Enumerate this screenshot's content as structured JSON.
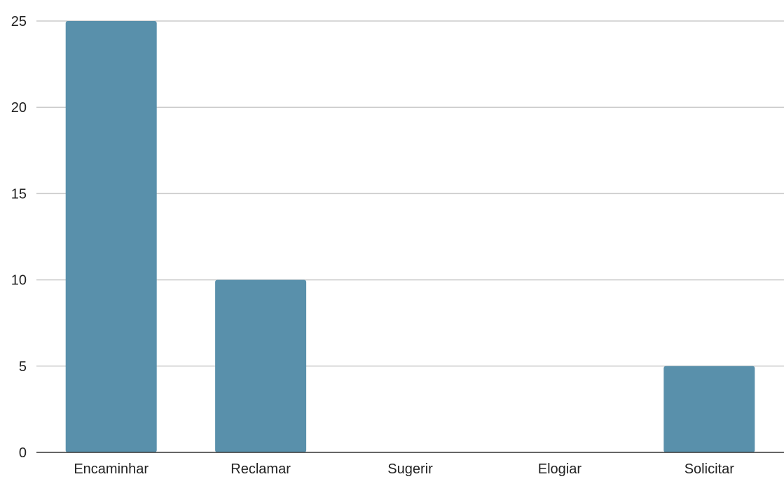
{
  "chart_data": {
    "type": "bar",
    "categories": [
      "Encaminhar",
      "Reclamar",
      "Sugerir",
      "Elogiar",
      "Solicitar"
    ],
    "values": [
      25,
      10,
      0,
      0,
      5
    ],
    "ylim": [
      0,
      25
    ],
    "yticks": [
      0,
      5,
      10,
      15,
      20,
      25
    ],
    "grid": true,
    "colors": {
      "bar": "#5990ab",
      "grid": "#cccccc",
      "axis": "#333333"
    }
  }
}
